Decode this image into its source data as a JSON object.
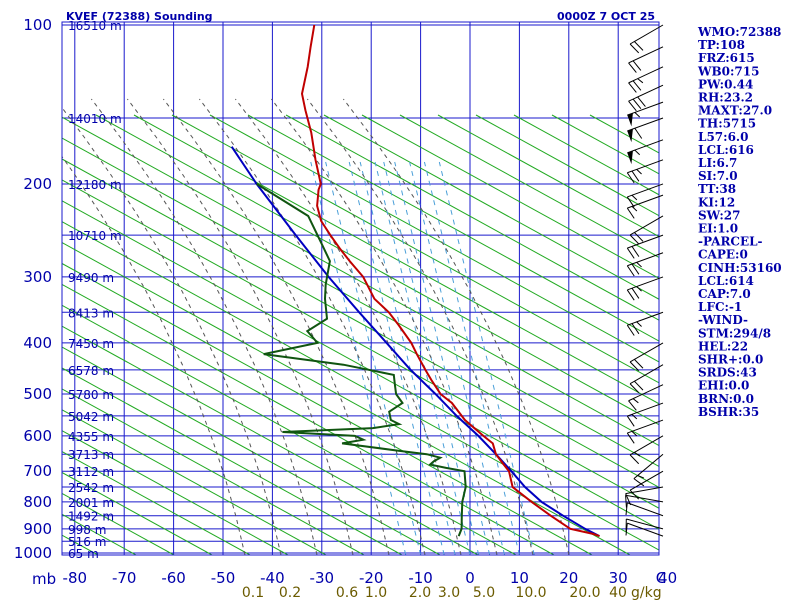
{
  "header": {
    "title": "KVEF (72388) Sounding",
    "time": "0000Z  7 OCT 25"
  },
  "chart_data": {
    "type": "skew-t log-p sounding",
    "pressure_levels": [
      100,
      200,
      300,
      400,
      500,
      600,
      700,
      800,
      900,
      1000
    ],
    "pressure_labels": [
      "100",
      "200",
      "300",
      "400",
      "500",
      "600",
      "700",
      "800",
      "900",
      "1000"
    ],
    "p_unit_label": "mb",
    "x_ticks": [
      -80,
      -70,
      -60,
      -50,
      -40,
      -30,
      -20,
      -10,
      0,
      10,
      20,
      30,
      40
    ],
    "x_labels": [
      "-80",
      "-70",
      "-60",
      "-50",
      "-40",
      "-30",
      "-20",
      "-10",
      "0",
      "10",
      "20",
      "30",
      "40"
    ],
    "extra_bottom_label": "C",
    "mixing_ratio_labels": [
      {
        "value": 0.1,
        "label": "0.1"
      },
      {
        "value": 0.2,
        "label": "0.2"
      },
      {
        "value": 0.6,
        "label": "0.6"
      },
      {
        "value": 1.0,
        "label": "1.0"
      },
      {
        "value": 2.0,
        "label": "2.0"
      },
      {
        "value": 3.0,
        "label": "3.0"
      },
      {
        "value": 5.0,
        "label": "5.0"
      },
      {
        "value": 10.0,
        "label": "10.0"
      },
      {
        "value": 20.0,
        "label": "20.0"
      },
      {
        "value": 40.0,
        "label": "40"
      }
    ],
    "mixing_ratio_unit": "g/kg",
    "height_labels": [
      {
        "p": 100,
        "label": "16510 m"
      },
      {
        "p": 150,
        "label": "14010 m"
      },
      {
        "p": 200,
        "label": "12180 m"
      },
      {
        "p": 250,
        "label": "10710 m"
      },
      {
        "p": 300,
        "label": "9490 m"
      },
      {
        "p": 350,
        "label": "8413 m"
      },
      {
        "p": 400,
        "label": "7450 m"
      },
      {
        "p": 450,
        "label": "6578 m"
      },
      {
        "p": 500,
        "label": "5780 m"
      },
      {
        "p": 550,
        "label": "5042 m"
      },
      {
        "p": 600,
        "label": "4355 m"
      },
      {
        "p": 650,
        "label": "3713 m"
      },
      {
        "p": 700,
        "label": "3112 m"
      },
      {
        "p": 750,
        "label": "2542 m"
      },
      {
        "p": 800,
        "label": "2001 m"
      },
      {
        "p": 850,
        "label": "1492 m"
      },
      {
        "p": 900,
        "label": "998 m"
      },
      {
        "p": 950,
        "label": "516 m"
      },
      {
        "p": 1000,
        "label": "65 m"
      }
    ],
    "temperature_profile": [
      [
        929,
        27.5
      ],
      [
        920,
        26.0
      ],
      [
        900,
        21.0
      ],
      [
        850,
        16.0
      ],
      [
        800,
        11.0
      ],
      [
        750,
        6.0
      ],
      [
        700,
        4.0
      ],
      [
        675,
        2.0
      ],
      [
        650,
        0.0
      ],
      [
        620,
        -1.5
      ],
      [
        600,
        -4.0
      ],
      [
        560,
        -9.0
      ],
      [
        520,
        -13.0
      ],
      [
        500,
        -16.0
      ],
      [
        470,
        -19.0
      ],
      [
        450,
        -21.0
      ],
      [
        420,
        -24.0
      ],
      [
        400,
        -26.0
      ],
      [
        370,
        -30.0
      ],
      [
        350,
        -33.0
      ],
      [
        330,
        -37.0
      ],
      [
        300,
        -41.0
      ],
      [
        280,
        -45.0
      ],
      [
        265,
        -48.0
      ],
      [
        250,
        -51.0
      ],
      [
        235,
        -54.0
      ],
      [
        220,
        -56.0
      ],
      [
        205,
        -57.0
      ],
      [
        200,
        -57.0
      ],
      [
        180,
        -60.0
      ],
      [
        160,
        -63.0
      ],
      [
        145,
        -66.0
      ],
      [
        135,
        -68.0
      ],
      [
        120,
        -69.0
      ],
      [
        110,
        -70.0
      ],
      [
        100,
        -71.0
      ]
    ],
    "dewpoint_profile": [
      [
        929,
        -1.0
      ],
      [
        900,
        -1.0
      ],
      [
        850,
        -2.0
      ],
      [
        800,
        -3.0
      ],
      [
        750,
        -3.5
      ],
      [
        700,
        -5.0
      ],
      [
        690,
        -9.0
      ],
      [
        680,
        -12.5
      ],
      [
        670,
        -12.0
      ],
      [
        660,
        -11.0
      ],
      [
        650,
        -14.0
      ],
      [
        640,
        -20.0
      ],
      [
        620,
        -32.0
      ],
      [
        610,
        -28.0
      ],
      [
        600,
        -30.0
      ],
      [
        590,
        -45.0
      ],
      [
        580,
        -27.0
      ],
      [
        570,
        -22.0
      ],
      [
        560,
        -24.0
      ],
      [
        540,
        -25.0
      ],
      [
        520,
        -23.0
      ],
      [
        500,
        -25.0
      ],
      [
        480,
        -26.0
      ],
      [
        460,
        -27.0
      ],
      [
        440,
        -38.0
      ],
      [
        420,
        -55.0
      ],
      [
        400,
        -45.0
      ],
      [
        380,
        -48.0
      ],
      [
        360,
        -45.0
      ],
      [
        330,
        -47.0
      ],
      [
        310,
        -48.0
      ],
      [
        280,
        -49.0
      ],
      [
        260,
        -52.0
      ],
      [
        230,
        -57.0
      ],
      [
        200,
        -70.0
      ]
    ],
    "parcel_profile": [
      [
        929,
        27.5
      ],
      [
        900,
        24.0
      ],
      [
        850,
        18.5
      ],
      [
        800,
        13.0
      ],
      [
        750,
        8.5
      ],
      [
        700,
        4.5
      ],
      [
        650,
        0.0
      ],
      [
        600,
        -5.0
      ],
      [
        550,
        -11.0
      ],
      [
        500,
        -17.0
      ],
      [
        450,
        -24.0
      ],
      [
        400,
        -31.0
      ],
      [
        350,
        -39.0
      ],
      [
        300,
        -48.0
      ],
      [
        250,
        -58.0
      ],
      [
        200,
        -70.0
      ],
      [
        170,
        -78.0
      ]
    ],
    "wind_barbs": [
      {
        "p": 929,
        "dir": 290,
        "spd": 10
      },
      {
        "p": 900,
        "dir": 285,
        "spd": 10
      },
      {
        "p": 850,
        "dir": 290,
        "spd": 10
      },
      {
        "p": 800,
        "dir": 280,
        "spd": 10
      },
      {
        "p": 750,
        "dir": 260,
        "spd": 10
      },
      {
        "p": 700,
        "dir": 240,
        "spd": 10
      },
      {
        "p": 650,
        "dir": 230,
        "spd": 15
      },
      {
        "p": 600,
        "dir": 240,
        "spd": 15
      },
      {
        "p": 560,
        "dir": 250,
        "spd": 15
      },
      {
        "p": 520,
        "dir": 250,
        "spd": 15
      },
      {
        "p": 480,
        "dir": 245,
        "spd": 15
      },
      {
        "p": 440,
        "dir": 240,
        "spd": 20
      },
      {
        "p": 400,
        "dir": 240,
        "spd": 20
      },
      {
        "p": 350,
        "dir": 250,
        "spd": 25
      },
      {
        "p": 300,
        "dir": 250,
        "spd": 25
      },
      {
        "p": 270,
        "dir": 250,
        "spd": 25
      },
      {
        "p": 250,
        "dir": 250,
        "spd": 20
      },
      {
        "p": 230,
        "dir": 240,
        "spd": 20
      },
      {
        "p": 210,
        "dir": 250,
        "spd": 15
      },
      {
        "p": 200,
        "dir": 250,
        "spd": 15
      },
      {
        "p": 180,
        "dir": 250,
        "spd": 25
      },
      {
        "p": 165,
        "dir": 250,
        "spd": 55
      },
      {
        "p": 150,
        "dir": 250,
        "spd": 60
      },
      {
        "p": 140,
        "dir": 250,
        "spd": 55
      },
      {
        "p": 130,
        "dir": 245,
        "spd": 30
      },
      {
        "p": 120,
        "dir": 245,
        "spd": 25
      },
      {
        "p": 110,
        "dir": 245,
        "spd": 20
      },
      {
        "p": 100,
        "dir": 240,
        "spd": 20
      }
    ]
  },
  "indices": [
    "WMO:72388",
    "TP:108",
    "FRZ:615",
    "WB0:715",
    "PW:0.44",
    "RH:23.2",
    "MAXT:27.0",
    "TH:5715",
    "L57:6.0",
    "LCL:616",
    "LI:6.7",
    "SI:7.0",
    "TT:38",
    "KI:12",
    "SW:27",
    "EI:1.0",
    "-PARCEL-",
    "CAPE:0",
    "CINH:53160",
    "LCL:614",
    "CAP:7.0",
    "LFC:-1",
    "-WIND-",
    "STM:294/8",
    "HEL:22",
    "SHR+:0.0",
    "SRDS:43",
    "EHI:0.0",
    "BRN:0.0",
    "BSHR:35"
  ],
  "colors": {
    "axis_blue": "#0000aa",
    "grid_blue": "#1a1acc",
    "dry_adiabat": "#22aa22",
    "moist_adiabat": "#555555",
    "mixing_ratio": "#4a9fd8",
    "temperature": "#c00000",
    "dewpoint": "#105510",
    "parcel": "#0000c0",
    "mix_label": "#6b5b00"
  }
}
